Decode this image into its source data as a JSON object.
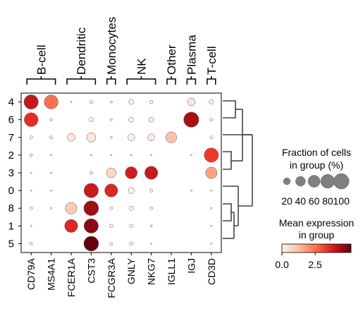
{
  "chart_data": {
    "type": "dotplot",
    "genes": [
      "CD79A",
      "MS4A1",
      "FCER1A",
      "CST3",
      "FCGR3A",
      "GNLY",
      "NKG7",
      "IGLL1",
      "IGJ",
      "CD3D"
    ],
    "clusters": [
      "4",
      "6",
      "7",
      "2",
      "3",
      "0",
      "8",
      "1",
      "5"
    ],
    "gene_groups": [
      {
        "label": "B-cell",
        "genes": [
          "CD79A",
          "MS4A1"
        ]
      },
      {
        "label": "Dendritic",
        "genes": [
          "FCER1A",
          "CST3"
        ]
      },
      {
        "label": "Monocytes",
        "genes": [
          "FCGR3A"
        ]
      },
      {
        "label": "NK",
        "genes": [
          "GNLY",
          "NKG7"
        ]
      },
      {
        "label": "Other",
        "genes": [
          "IGLL1"
        ]
      },
      {
        "label": "Plasma",
        "genes": [
          "IGJ"
        ]
      },
      {
        "label": "T-cell",
        "genes": [
          "CD3D"
        ]
      }
    ],
    "fraction": [
      [
        85,
        80,
        1,
        4,
        2,
        10,
        5,
        0,
        25,
        8
      ],
      [
        80,
        3,
        0,
        8,
        2,
        10,
        10,
        0,
        95,
        4
      ],
      [
        4,
        4,
        25,
        35,
        2,
        20,
        20,
        50,
        0,
        4
      ],
      [
        3,
        1,
        0,
        1,
        1,
        1,
        1,
        0,
        1,
        85
      ],
      [
        1,
        1,
        0,
        4,
        40,
        60,
        70,
        0,
        0,
        55
      ],
      [
        1,
        1,
        0,
        85,
        70,
        15,
        4,
        0,
        1,
        1
      ],
      [
        4,
        1,
        55,
        90,
        4,
        8,
        4,
        0,
        0,
        1
      ],
      [
        1,
        0,
        70,
        85,
        5,
        5,
        2,
        0,
        0,
        1
      ],
      [
        3,
        0,
        0,
        90,
        4,
        5,
        1,
        0,
        0,
        1
      ]
    ],
    "expression": [
      [
        4.0,
        2.5,
        0.1,
        0.1,
        0.0,
        0.1,
        0.1,
        0.0,
        0.5,
        0.2
      ],
      [
        3.5,
        0.1,
        0.0,
        0.1,
        0.0,
        0.1,
        0.1,
        0.0,
        4.5,
        0.1
      ],
      [
        0.1,
        0.1,
        0.5,
        0.4,
        0.0,
        0.2,
        0.3,
        1.2,
        0.0,
        0.1
      ],
      [
        0.1,
        0.0,
        0.0,
        0.0,
        0.0,
        0.0,
        0.0,
        0.0,
        0.0,
        3.3
      ],
      [
        0.0,
        0.0,
        0.0,
        0.1,
        0.8,
        3.8,
        3.9,
        0.0,
        0.0,
        1.7
      ],
      [
        0.0,
        0.0,
        0.0,
        3.9,
        3.6,
        0.1,
        0.1,
        0.0,
        0.0,
        0.1
      ],
      [
        0.1,
        0.0,
        1.0,
        4.6,
        0.1,
        0.1,
        0.1,
        0.0,
        0.0,
        0.0
      ],
      [
        0.0,
        0.0,
        3.6,
        4.8,
        0.1,
        0.1,
        0.1,
        0.0,
        0.0,
        0.0
      ],
      [
        0.1,
        0.0,
        0.0,
        5.2,
        0.1,
        0.1,
        0.1,
        0.0,
        0.0,
        0.0
      ]
    ],
    "size_legend": {
      "title_line1": "Fraction of cells",
      "title_line2": "in group (%)",
      "ticks": [
        "20",
        "40",
        "60",
        "80",
        "100"
      ],
      "values": [
        20,
        40,
        60,
        80,
        100
      ]
    },
    "color_legend": {
      "title_line1": "Mean expression",
      "title_line2": "in group",
      "ticks": [
        "0.0",
        "2.5"
      ],
      "tick_values": [
        0.0,
        2.5
      ],
      "vmin": 0,
      "vmax": 5.2,
      "colormap": "Reds"
    },
    "dendrogram": "right",
    "colors": {
      "dot_edge": "#555555",
      "size_legend_dot": "#808080",
      "dendrogram_line": "#444444"
    }
  }
}
